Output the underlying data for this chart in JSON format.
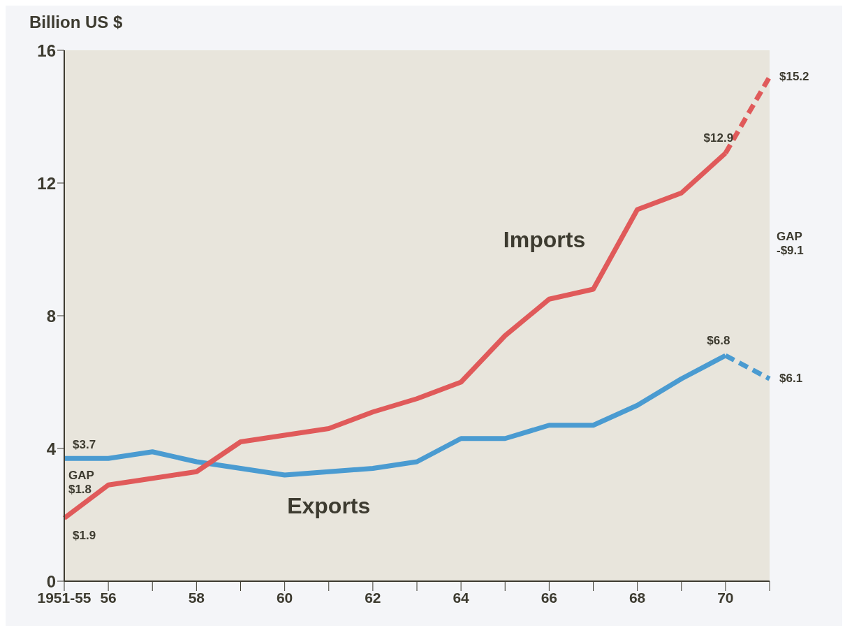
{
  "chart_data": {
    "type": "line",
    "ylabel": "Billion US $",
    "categories": [
      "1951-55",
      "56",
      null,
      "58",
      null,
      "60",
      null,
      "62",
      null,
      "64",
      null,
      "66",
      null,
      "68",
      null,
      "70",
      null
    ],
    "series": [
      {
        "name": "Exports",
        "color": "#4a9bd1",
        "line_style": "solid",
        "values": [
          3.7,
          3.7,
          3.9,
          3.6,
          3.4,
          3.2,
          3.3,
          3.4,
          3.6,
          4.3,
          4.3,
          4.7,
          4.7,
          5.3,
          6.1,
          6.8,
          null
        ],
        "value_labels": [
          "$3.7",
          null,
          null,
          null,
          null,
          null,
          null,
          null,
          null,
          null,
          null,
          null,
          null,
          null,
          null,
          "$6.8",
          null
        ]
      },
      {
        "color": "#4a9bd1",
        "line_style": "dashed",
        "values": [
          null,
          null,
          null,
          null,
          null,
          null,
          null,
          null,
          null,
          null,
          null,
          null,
          null,
          null,
          null,
          6.8,
          6.1
        ],
        "value_labels": [
          null,
          null,
          null,
          null,
          null,
          null,
          null,
          null,
          null,
          null,
          null,
          null,
          null,
          null,
          null,
          null,
          "$6.1"
        ]
      },
      {
        "name": "Imports",
        "color": "#e05a5a",
        "line_style": "solid",
        "values": [
          1.9,
          2.9,
          3.1,
          3.3,
          4.2,
          4.4,
          4.6,
          5.1,
          5.5,
          6.0,
          7.4,
          8.5,
          8.8,
          11.2,
          11.7,
          12.9,
          null
        ],
        "value_labels": [
          "$1.9",
          null,
          null,
          null,
          null,
          null,
          null,
          null,
          null,
          null,
          null,
          null,
          null,
          null,
          null,
          "$12.9",
          null
        ]
      },
      {
        "color": "#e05a5a",
        "line_style": "dashed",
        "values": [
          null,
          null,
          null,
          null,
          null,
          null,
          null,
          null,
          null,
          null,
          null,
          null,
          null,
          null,
          null,
          12.9,
          15.2
        ],
        "value_labels": [
          null,
          null,
          null,
          null,
          null,
          null,
          null,
          null,
          null,
          null,
          null,
          null,
          null,
          null,
          null,
          null,
          "$15.2"
        ]
      }
    ],
    "ylim": [
      0,
      16
    ],
    "yticks": [
      0,
      4,
      8,
      12,
      16
    ],
    "grid": false,
    "legend": false,
    "annotations": [
      "GAP $1.8",
      "GAP -$9.1"
    ]
  }
}
